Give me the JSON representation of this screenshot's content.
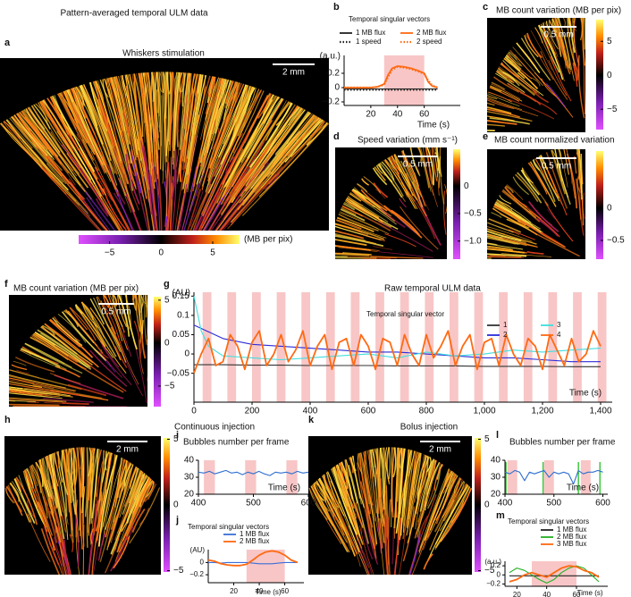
{
  "figure_title": "Pattern-averaged temporal ULM data",
  "images": [
    {
      "label": "a",
      "title": "Whiskers stimulation",
      "scalebar": "2 mm",
      "colorbar": {
        "label": "(MB per pix)",
        "lim": [
          -8,
          7.6
        ],
        "ticks": [
          {
            "value": -5,
            "label": "−5"
          },
          0,
          5
        ]
      }
    },
    {
      "label": "c",
      "title": "MB count variation (MB per pix)",
      "scalebar": "0.5 mm",
      "colorbar": {
        "lim": [
          -8,
          8.2
        ],
        "ticks": [
          5,
          0,
          {
            "value": -5,
            "label": "−5"
          }
        ]
      }
    },
    {
      "label": "d",
      "title": "Speed variation (mm s⁻¹)",
      "scalebar": "0.5 mm",
      "colorbar": {
        "lim": [
          -1.33,
          0.67
        ],
        "ticks": [
          0,
          {
            "value": -0.5,
            "label": "−0.5"
          },
          {
            "value": -1,
            "label": "−1.0"
          }
        ]
      }
    },
    {
      "label": "e",
      "title": "MB count normalized variation",
      "scalebar": "0.5 mm",
      "colorbar": {
        "lim": [
          -0.79,
          0.88
        ],
        "ticks": [
          0,
          {
            "value": -0.5,
            "label": "−0.5"
          }
        ]
      }
    },
    {
      "label": "f",
      "title": "MB count variation (MB per pix)",
      "scalebar": "0.5 mm",
      "colorbar": {
        "lim": [
          -7.4,
          5.4
        ],
        "ticks": [
          5,
          0,
          {
            "value": -5,
            "label": "−5"
          }
        ]
      }
    },
    {
      "label": "h",
      "title": "Continuous injection",
      "scalebar": "2 mm",
      "colorbar": {
        "lim": [
          -5.1,
          5.1
        ],
        "ticks": [
          5,
          0,
          {
            "value": -5,
            "label": "−5"
          }
        ]
      }
    },
    {
      "label": "k",
      "title": "Bolus injection",
      "scalebar": "2 mm",
      "colorbar": {
        "lim": [
          -5.1,
          5.1
        ],
        "ticks": [
          5,
          0,
          {
            "value": -5,
            "label": "−5"
          }
        ]
      }
    }
  ],
  "chart_data": [
    {
      "type": "line",
      "label": "b",
      "legend_title": "Temporal singular vectors",
      "ylabel": "(a.u.)",
      "xlabel": "Time (s)",
      "x": [
        0,
        10,
        20,
        25,
        30,
        33,
        36,
        40,
        45,
        50,
        55,
        60,
        63,
        66,
        70
      ],
      "xlim": [
        0,
        87
      ],
      "xticks": [
        20,
        40,
        60
      ],
      "ylim": [
        -0.25,
        0.45
      ],
      "yticks": [
        0.2,
        0,
        {
          "value": -0.2,
          "label": "−0.2"
        }
      ],
      "bands": [
        [
          30,
          60
        ]
      ],
      "band_color": "#f8c6c6",
      "series": [
        {
          "name": "1 MB flux",
          "color": "#222222",
          "values": [
            -0.02,
            -0.02,
            -0.02,
            -0.02,
            -0.02,
            -0.02,
            -0.02,
            -0.02,
            -0.02,
            -0.02,
            -0.02,
            -0.02,
            -0.02,
            -0.02,
            -0.02
          ]
        },
        {
          "name": "2 MB flux",
          "color": "#ff6a13",
          "values": [
            0,
            0,
            0,
            0.01,
            0.05,
            0.18,
            0.27,
            0.3,
            0.29,
            0.27,
            0.24,
            0.2,
            0.08,
            0.02,
            0
          ]
        },
        {
          "name": "1 speed",
          "color": "#222222",
          "dash": true,
          "values": [
            -0.03,
            -0.03,
            -0.03,
            -0.03,
            -0.03,
            -0.03,
            -0.03,
            -0.03,
            -0.03,
            -0.03,
            -0.03,
            -0.03,
            -0.03,
            -0.03,
            -0.03
          ]
        },
        {
          "name": "2 speed",
          "color": "#ff6a13",
          "dash": true,
          "values": [
            0,
            0,
            0,
            0.01,
            0.04,
            0.15,
            0.25,
            0.29,
            0.28,
            0.26,
            0.23,
            0.19,
            0.1,
            0.03,
            0
          ]
        }
      ]
    },
    {
      "type": "line",
      "label": "g",
      "title": "Raw temporal ULM data",
      "legend_title": "Temporal singular vector",
      "ylabel": "(AU)",
      "xlabel": "Time (s)",
      "x": [
        0,
        25,
        50,
        75,
        100,
        125,
        150,
        175,
        200,
        225,
        250,
        275,
        300,
        325,
        350,
        375,
        400,
        425,
        450,
        475,
        500,
        525,
        550,
        575,
        600,
        625,
        650,
        675,
        700,
        725,
        750,
        775,
        800,
        825,
        850,
        875,
        900,
        925,
        950,
        975,
        1000,
        1025,
        1050,
        1075,
        1100,
        1125,
        1150,
        1175,
        1200,
        1225,
        1250,
        1275,
        1300,
        1325,
        1350,
        1375,
        1400
      ],
      "xlim": [
        0,
        1440
      ],
      "xticks": [
        0,
        200,
        400,
        600,
        800,
        {
          "value": 1000,
          "label": "1,000"
        },
        {
          "value": 1200,
          "label": "1,200"
        },
        {
          "value": 1400,
          "label": "1,400"
        }
      ],
      "ylim": [
        -0.125,
        0.16
      ],
      "yticks": [
        0.15,
        0.1,
        0.05,
        0,
        {
          "value": -0.05,
          "label": "−0.05"
        }
      ],
      "bands": [
        [
          30,
          60
        ],
        [
          115,
          145
        ],
        [
          200,
          230
        ],
        [
          285,
          315
        ],
        [
          370,
          400
        ],
        [
          455,
          485
        ],
        [
          540,
          570
        ],
        [
          625,
          655
        ],
        [
          710,
          740
        ],
        [
          795,
          825
        ],
        [
          880,
          910
        ],
        [
          965,
          995
        ],
        [
          1050,
          1080
        ],
        [
          1135,
          1165
        ],
        [
          1220,
          1250
        ],
        [
          1305,
          1335
        ],
        [
          1390,
          1420
        ]
      ],
      "band_color": "#f8c6c6",
      "series": [
        {
          "name": "1",
          "color": "#333333",
          "x": [
            0,
            100,
            200,
            300,
            400,
            500,
            600,
            700,
            800,
            900,
            1000,
            1100,
            1200,
            1300,
            1400
          ],
          "values": [
            -0.028,
            -0.028,
            -0.029,
            -0.029,
            -0.03,
            -0.03,
            -0.03,
            -0.031,
            -0.031,
            -0.031,
            -0.032,
            -0.032,
            -0.032,
            -0.033,
            -0.033
          ]
        },
        {
          "name": "2",
          "color": "#2b2bd9",
          "x": [
            0,
            100,
            200,
            300,
            400,
            500,
            600,
            700,
            800,
            900,
            1000,
            1100,
            1200,
            1300,
            1400
          ],
          "values": [
            0.075,
            0.04,
            0.025,
            0.02,
            0.015,
            0.01,
            0.005,
            0.005,
            0,
            -0.005,
            -0.01,
            -0.01,
            -0.015,
            -0.02,
            -0.02
          ]
        },
        {
          "name": "3",
          "color": "#3fdede",
          "x": [
            0,
            25,
            50,
            100,
            200,
            300,
            400,
            500,
            600,
            700,
            800,
            900,
            1000,
            1100,
            1200,
            1300,
            1400
          ],
          "values": [
            0.15,
            0.06,
            0.02,
            -0.005,
            -0.01,
            -0.015,
            -0.01,
            -0.005,
            0,
            -0.01,
            0.005,
            -0.005,
            0,
            0.01,
            0.005,
            0.01,
            0.015
          ]
        },
        {
          "name": "4",
          "color": "#ff6a13",
          "values": [
            -0.05,
            0,
            0.04,
            -0.03,
            -0.02,
            0.05,
            0.02,
            -0.04,
            0.03,
            0.06,
            -0.03,
            0,
            0.05,
            -0.02,
            0.01,
            0.06,
            -0.03,
            0.02,
            0.05,
            -0.04,
            0.03,
            0.04,
            -0.03,
            0.05,
            0.02,
            -0.04,
            0.04,
            0.03,
            -0.03,
            0.05,
            0,
            -0.03,
            0.05,
            -0.01,
            0.02,
            0.06,
            -0.03,
            0.02,
            0.05,
            -0.04,
            0.03,
            0.04,
            -0.03,
            0.05,
            0,
            -0.03,
            0.04,
            0.02,
            -0.04,
            0.05,
            0.01,
            -0.03,
            0.04,
            -0.02,
            0,
            0.06,
            0.02
          ]
        }
      ]
    },
    {
      "type": "line",
      "label": "i",
      "title": "Bubbles number per frame",
      "xlabel": "Time (s)",
      "x": [
        400,
        410,
        420,
        430,
        440,
        450,
        460,
        470,
        480,
        490,
        500,
        510,
        520,
        530,
        540,
        550,
        560,
        570,
        580,
        590,
        600
      ],
      "xlim": [
        400,
        600
      ],
      "xticks": [
        400,
        500,
        600
      ],
      "ylim": [
        20,
        40
      ],
      "yticks": [
        20,
        30,
        40
      ],
      "bands": [
        [
          410,
          430
        ],
        [
          485,
          505
        ],
        [
          560,
          580
        ]
      ],
      "band_color": "#f8c6c6",
      "series": [
        {
          "color": "#3070d0",
          "values": [
            33,
            32.5,
            33.5,
            32,
            33,
            34,
            32.5,
            33,
            31.5,
            33,
            32,
            33.5,
            32,
            31,
            33,
            32.5,
            33,
            32,
            33.5,
            32.5,
            33
          ]
        }
      ]
    },
    {
      "type": "line",
      "label": "j",
      "legend_title": "Temporal singular vectors",
      "ylabel": "(AU)",
      "xlabel": "Time (s)",
      "x": [
        0,
        5,
        10,
        15,
        20,
        25,
        30,
        35,
        40,
        45,
        50,
        55,
        60,
        65,
        70
      ],
      "xlim": [
        0,
        75
      ],
      "xticks": [
        20,
        40,
        60
      ],
      "ylim": [
        -0.33,
        0.21
      ],
      "yticks": [
        0,
        {
          "value": -0.2,
          "label": "−0.2"
        }
      ],
      "bands": [
        [
          30,
          60
        ]
      ],
      "band_color": "#f8c6c6",
      "series": [
        {
          "name": "1 MB flux",
          "color": "#3a6fd8",
          "values": [
            0,
            0,
            -0.01,
            0,
            0,
            0,
            0,
            -0.01,
            -0.02,
            -0.02,
            -0.02,
            -0.01,
            0,
            0,
            0
          ]
        },
        {
          "name": "2  MB flux",
          "color": "#ff6a13",
          "values": [
            0.04,
            0.02,
            -0.02,
            -0.04,
            -0.05,
            -0.05,
            -0.03,
            0.04,
            0.12,
            0.17,
            0.19,
            0.17,
            0.12,
            0.04,
            0
          ]
        }
      ]
    },
    {
      "type": "line",
      "label": "l",
      "title": "Bubbles number per frame",
      "xlabel": "Time (s)",
      "x": [
        400,
        410,
        420,
        430,
        440,
        450,
        460,
        470,
        480,
        490,
        500,
        510,
        520,
        530,
        540,
        550,
        560,
        570,
        580,
        590,
        600
      ],
      "xlim": [
        400,
        610
      ],
      "xticks": [
        400,
        500,
        600
      ],
      "ylim": [
        20,
        40
      ],
      "yticks": [
        20,
        30,
        40
      ],
      "bands": [
        [
          405,
          425
        ],
        [
          480,
          500
        ],
        [
          555,
          575
        ]
      ],
      "band_color": "#f8c6c6",
      "injections": {
        "color": "#22c022",
        "x": [
          402,
          478,
          550,
          594
        ]
      },
      "series": [
        {
          "color": "#3070d0",
          "values": [
            33,
            32,
            34,
            33,
            28,
            33,
            32,
            33,
            34,
            30,
            33,
            32,
            33,
            32,
            26,
            34,
            32,
            33,
            33,
            34,
            33
          ]
        }
      ]
    },
    {
      "type": "line",
      "label": "m",
      "legend_title": "Temporal singular vectors",
      "ylabel": "(a.u.)",
      "xlabel": "Time (s)",
      "x": [
        15,
        20,
        25,
        30,
        35,
        40,
        45,
        50,
        55,
        60,
        65,
        70,
        75
      ],
      "xlim": [
        12,
        81
      ],
      "xticks": [
        20,
        40,
        60
      ],
      "ylim": [
        -0.25,
        0.3
      ],
      "yticks": [
        0.2,
        0,
        {
          "value": -0.2,
          "label": "−0.2"
        }
      ],
      "bands": [
        [
          30,
          60
        ]
      ],
      "band_color": "#f8c6c6",
      "series": [
        {
          "name": "1 MB flux",
          "color": "#222222",
          "values": [
            -0.02,
            -0.02,
            -0.02,
            -0.02,
            -0.02,
            -0.02,
            -0.02,
            -0.02,
            -0.02,
            -0.02,
            -0.02,
            -0.02,
            -0.02
          ]
        },
        {
          "name": "2  MB flux",
          "color": "#22b022",
          "values": [
            0.05,
            0.15,
            0.1,
            0,
            -0.1,
            -0.18,
            -0.1,
            0.05,
            0.15,
            0.2,
            0.15,
            0,
            -0.15
          ]
        },
        {
          "name": "3 MB flux",
          "color": "#ff6a13",
          "values": [
            -0.15,
            -0.1,
            0,
            0.05,
            0,
            -0.05,
            0.05,
            0.15,
            0.2,
            0.18,
            0.1,
            0.05,
            -0.05
          ]
        }
      ]
    }
  ]
}
